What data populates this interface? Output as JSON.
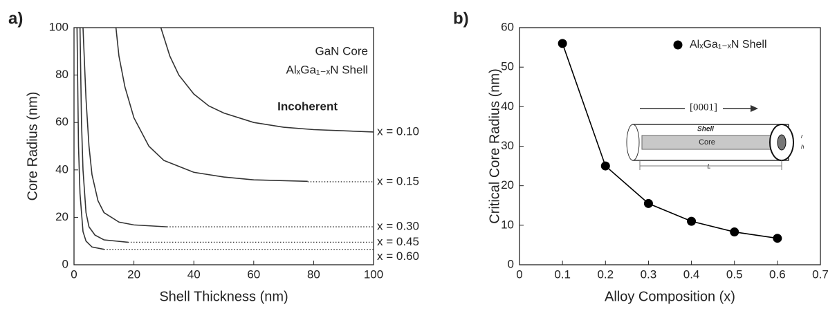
{
  "chart_data": [
    {
      "type": "line",
      "panel_label": "a)",
      "xlabel": "Shell Thickness (nm)",
      "ylabel": "Core Radius (nm)",
      "xlim": [
        0,
        100
      ],
      "ylim": [
        0,
        100
      ],
      "xticks": [
        0,
        20,
        40,
        60,
        80,
        100
      ],
      "yticks": [
        0,
        20,
        40,
        60,
        80,
        100
      ],
      "annotations": [
        "GaN Core",
        "AlₓGa₁₋ₓN Shell",
        "Incoherent"
      ],
      "color": "#333333",
      "series": [
        {
          "name": "x = 0.10",
          "x": [
            29,
            32,
            35,
            40,
            45,
            50,
            60,
            70,
            80,
            90,
            100
          ],
          "values": [
            100,
            88,
            80,
            72,
            67,
            64,
            60,
            58,
            57,
            56.5,
            56
          ],
          "tail_x": [],
          "tail_values": []
        },
        {
          "name": "x = 0.15",
          "x": [
            14,
            15,
            17,
            20,
            25,
            30,
            40,
            50,
            60,
            78
          ],
          "values": [
            100,
            88,
            75,
            62,
            50,
            44,
            39,
            37,
            35.8,
            35.2
          ],
          "tail_x": [
            78,
            100
          ],
          "tail_values": [
            35,
            35
          ]
        },
        {
          "name": "x = 0.30",
          "x": [
            3,
            4,
            5,
            6,
            8,
            10,
            15,
            20,
            31
          ],
          "values": [
            100,
            70,
            50,
            38,
            27,
            22,
            18,
            16.8,
            16
          ],
          "tail_x": [
            31,
            100
          ],
          "tail_values": [
            16,
            16
          ]
        },
        {
          "name": "x = 0.45",
          "x": [
            2,
            2.5,
            3,
            4,
            5,
            7,
            10,
            18
          ],
          "values": [
            100,
            60,
            40,
            22,
            16,
            12.5,
            10.5,
            9.5
          ],
          "tail_x": [
            18,
            100
          ],
          "tail_values": [
            9.5,
            9.5
          ]
        },
        {
          "name": "x = 0.60",
          "x": [
            1,
            1.5,
            2,
            3,
            4,
            6,
            10
          ],
          "values": [
            100,
            50,
            30,
            14,
            10,
            7.5,
            6.5
          ],
          "tail_x": [
            10,
            100
          ],
          "tail_values": [
            6.5,
            6.5
          ]
        }
      ]
    },
    {
      "type": "line",
      "markers": true,
      "panel_label": "b)",
      "xlabel": "Alloy Composition (x)",
      "ylabel": "Critical Core Radius (nm)",
      "xlim": [
        0,
        0.7
      ],
      "ylim": [
        0,
        60
      ],
      "xticks": [
        0,
        0.1,
        0.2,
        0.3,
        0.4,
        0.5,
        0.6,
        0.7
      ],
      "yticks": [
        0,
        10,
        20,
        30,
        40,
        50,
        60
      ],
      "color": "#000000",
      "series": [
        {
          "name": "AlₓGa₁₋ₓN Shell",
          "x": [
            0.1,
            0.2,
            0.3,
            0.4,
            0.5,
            0.6
          ],
          "values": [
            56,
            25,
            15.5,
            11,
            8.3,
            6.7
          ]
        }
      ],
      "inset": {
        "direction": "[0001]",
        "shell": "Shell",
        "core": "Core",
        "length": "L",
        "radius": "r",
        "thickness": "h"
      }
    }
  ]
}
